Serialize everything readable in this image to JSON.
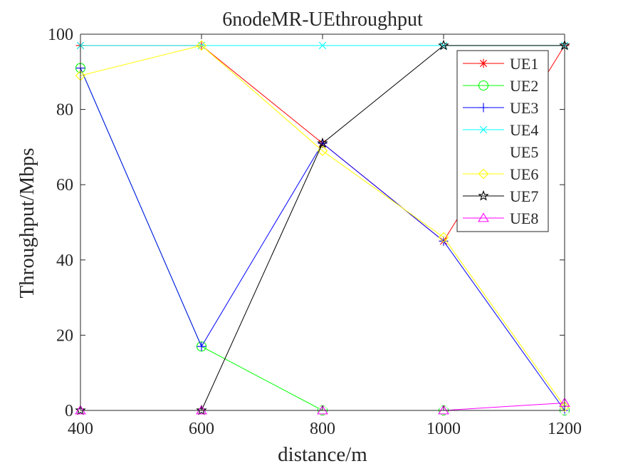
{
  "chart_data": {
    "type": "line",
    "title": "6nodeMR-UEthroughput",
    "xlabel": "distance/m",
    "ylabel": "Throughput/Mbps",
    "x": [
      400,
      600,
      800,
      1000,
      1200
    ],
    "xlim": [
      400,
      1200
    ],
    "ylim": [
      0,
      100
    ],
    "xticks": [
      "400",
      "600",
      "800",
      "1000",
      "1200"
    ],
    "yticks": [
      "0",
      "20",
      "40",
      "60",
      "80",
      "100"
    ],
    "grid": false,
    "legend_position": "top-right",
    "series": [
      {
        "name": "UE1",
        "color": "#ff0000",
        "marker": "asterisk",
        "values": [
          97,
          97,
          71,
          45,
          97
        ]
      },
      {
        "name": "UE2",
        "color": "#00ff00",
        "marker": "circle",
        "values": [
          91,
          17,
          0,
          0,
          0
        ]
      },
      {
        "name": "UE3",
        "color": "#0000ff",
        "marker": "plus",
        "values": [
          91,
          17,
          71,
          45,
          0
        ]
      },
      {
        "name": "UE4",
        "color": "#00ffff",
        "marker": "x",
        "values": [
          97,
          97,
          97,
          97,
          97
        ]
      },
      {
        "name": "UE5",
        "color": "#ffffff",
        "marker": "square",
        "values": [
          0,
          0,
          0,
          0,
          0
        ]
      },
      {
        "name": "UE6",
        "color": "#ffff00",
        "marker": "diamond",
        "values": [
          89,
          97,
          69,
          46,
          1
        ]
      },
      {
        "name": "UE7",
        "color": "#000000",
        "marker": "star",
        "values": [
          0,
          0,
          71,
          97,
          97
        ]
      },
      {
        "name": "UE8",
        "color": "#ff00ff",
        "marker": "triangle",
        "values": [
          0,
          0,
          0,
          0,
          2
        ]
      }
    ]
  }
}
